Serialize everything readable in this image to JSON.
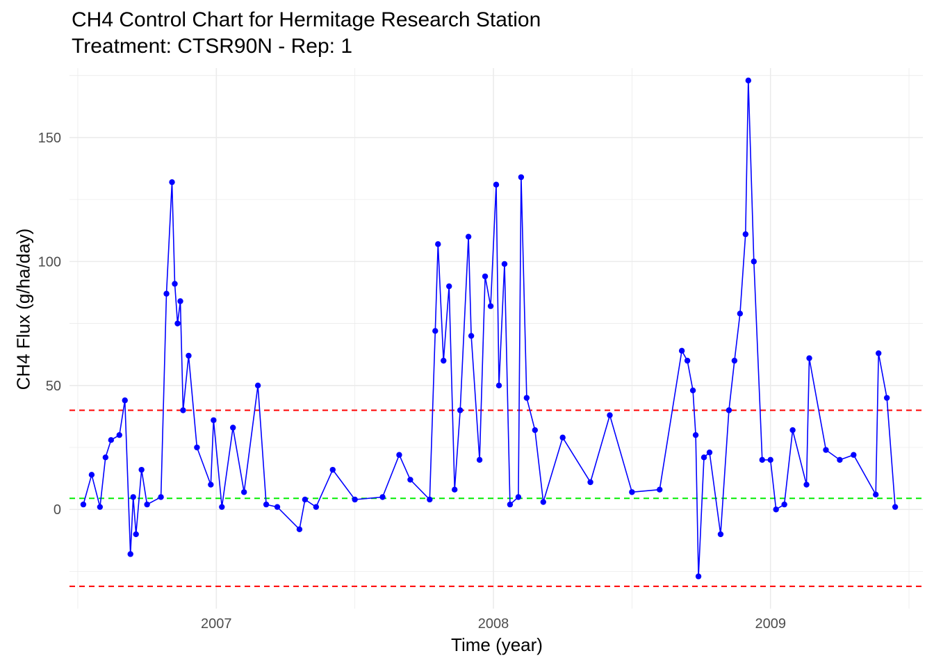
{
  "chart_data": {
    "type": "line",
    "title": "CH4 Control Chart for Hermitage Research Station",
    "subtitle": "Treatment: CTSR90N - Rep: 1",
    "xlabel": "Time (year)",
    "ylabel": "CH4 Flux (g/ha/day)",
    "x_ticks": [
      "2007",
      "2008",
      "2009"
    ],
    "y_ticks": [
      0,
      50,
      100,
      150
    ],
    "xlim": [
      2006.47,
      2009.55
    ],
    "ylim": [
      -40,
      178
    ],
    "grid": true,
    "legend": "none",
    "reference_lines": [
      {
        "y": 40,
        "color": "#ff0000",
        "style": "dashed"
      },
      {
        "y": 4.5,
        "color": "#00ee00",
        "style": "dashed"
      },
      {
        "y": -31,
        "color": "#ff0000",
        "style": "dashed"
      }
    ],
    "series": [
      {
        "color": "#0000ff",
        "x": [
          2006.52,
          2006.55,
          2006.58,
          2006.6,
          2006.62,
          2006.65,
          2006.67,
          2006.69,
          2006.7,
          2006.71,
          2006.73,
          2006.75,
          2006.8,
          2006.82,
          2006.84,
          2006.85,
          2006.86,
          2006.87,
          2006.88,
          2006.9,
          2006.93,
          2006.98,
          2006.99,
          2007.02,
          2007.06,
          2007.1,
          2007.15,
          2007.18,
          2007.22,
          2007.3,
          2007.32,
          2007.36,
          2007.42,
          2007.5,
          2007.6,
          2007.66,
          2007.7,
          2007.77,
          2007.79,
          2007.8,
          2007.82,
          2007.84,
          2007.86,
          2007.88,
          2007.91,
          2007.92,
          2007.95,
          2007.97,
          2007.99,
          2008.01,
          2008.02,
          2008.04,
          2008.06,
          2008.09,
          2008.1,
          2008.12,
          2008.15,
          2008.18,
          2008.25,
          2008.35,
          2008.42,
          2008.5,
          2008.6,
          2008.68,
          2008.7,
          2008.72,
          2008.73,
          2008.74,
          2008.76,
          2008.78,
          2008.82,
          2008.85,
          2008.87,
          2008.89,
          2008.91,
          2008.92,
          2008.94,
          2008.97,
          2009.0,
          2009.02,
          2009.05,
          2009.08,
          2009.13,
          2009.14,
          2009.2,
          2009.25,
          2009.3,
          2009.38,
          2009.39,
          2009.42,
          2009.45
        ],
        "y": [
          2,
          14,
          1,
          21,
          28,
          30,
          44,
          -18,
          5,
          -10,
          16,
          2,
          5,
          87,
          132,
          91,
          75,
          84,
          40,
          62,
          25,
          10,
          36,
          1,
          33,
          7,
          50,
          2,
          1,
          -8,
          4,
          1,
          16,
          4,
          5,
          22,
          12,
          4,
          72,
          107,
          60,
          90,
          8,
          40,
          110,
          70,
          20,
          94,
          82,
          131,
          50,
          99,
          2,
          5,
          134,
          45,
          32,
          3,
          29,
          11,
          38,
          7,
          8,
          64,
          60,
          48,
          30,
          -27,
          21,
          23,
          -10,
          40,
          60,
          79,
          111,
          173,
          100,
          20,
          20,
          0,
          2,
          32,
          10,
          61,
          24,
          20,
          22,
          6,
          63,
          45,
          1
        ]
      }
    ]
  }
}
